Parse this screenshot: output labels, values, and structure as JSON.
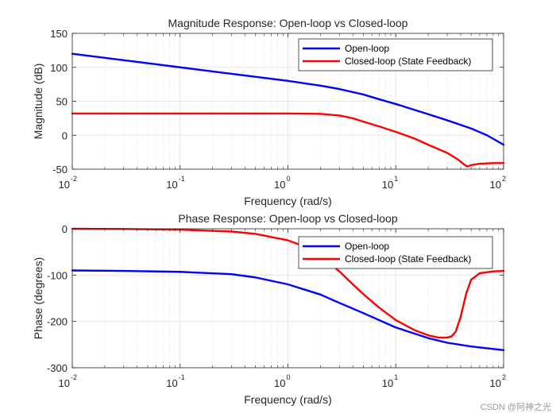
{
  "chart_data": [
    {
      "type": "line",
      "title": "Magnitude Response: Open-loop vs Closed-loop",
      "xlabel": "Frequency (rad/s)",
      "ylabel": "Magnitude (dB)",
      "xscale": "log",
      "xlim": [
        0.01,
        100
      ],
      "ylim": [
        -50,
        150
      ],
      "xticks": [
        {
          "base": "10",
          "exp": "-2",
          "value": 0.01
        },
        {
          "base": "10",
          "exp": "-1",
          "value": 0.1
        },
        {
          "base": "10",
          "exp": "0",
          "value": 1
        },
        {
          "base": "10",
          "exp": "1",
          "value": 10
        },
        {
          "base": "10",
          "exp": "2",
          "value": 100
        }
      ],
      "yticks": [
        {
          "label": "150",
          "value": 150
        },
        {
          "label": "100",
          "value": 100
        },
        {
          "label": "50",
          "value": 50
        },
        {
          "label": "0",
          "value": 0
        },
        {
          "label": "-50",
          "value": -50
        }
      ],
      "grid": true,
      "legend_position": "top-right",
      "series": [
        {
          "name": "Open-loop",
          "color": "#0000ff",
          "x": [
            0.01,
            0.02,
            0.05,
            0.1,
            0.2,
            0.5,
            1,
            2,
            3,
            5,
            7,
            10,
            20,
            30,
            50,
            70,
            100
          ],
          "y": [
            120,
            114,
            106,
            100,
            94,
            86,
            80,
            73,
            68,
            60,
            53,
            46,
            31,
            22,
            10,
            0,
            -14
          ]
        },
        {
          "name": "Closed-loop (State Feedback)",
          "color": "#ff0000",
          "x": [
            0.01,
            0.1,
            1,
            2,
            3,
            4,
            5,
            7,
            10,
            15,
            20,
            30,
            38,
            43,
            46,
            50,
            60,
            80,
            100
          ],
          "y": [
            32,
            32,
            32,
            31.5,
            29,
            25,
            20,
            13,
            5,
            -5,
            -14,
            -26,
            -36,
            -43,
            -46,
            -44,
            -42,
            -41,
            -41
          ]
        }
      ]
    },
    {
      "type": "line",
      "title": "Phase Response: Open-loop vs Closed-loop",
      "xlabel": "Frequency (rad/s)",
      "ylabel": "Phase (degrees)",
      "xscale": "log",
      "xlim": [
        0.01,
        100
      ],
      "ylim": [
        -300,
        0
      ],
      "xticks": [
        {
          "base": "10",
          "exp": "-2",
          "value": 0.01
        },
        {
          "base": "10",
          "exp": "-1",
          "value": 0.1
        },
        {
          "base": "10",
          "exp": "0",
          "value": 1
        },
        {
          "base": "10",
          "exp": "1",
          "value": 10
        },
        {
          "base": "10",
          "exp": "2",
          "value": 100
        }
      ],
      "yticks": [
        {
          "label": "0",
          "value": 0
        },
        {
          "label": "-100",
          "value": -100
        },
        {
          "label": "-200",
          "value": -200
        },
        {
          "label": "-300",
          "value": -300
        }
      ],
      "grid": true,
      "legend_position": "top-right",
      "series": [
        {
          "name": "Open-loop",
          "color": "#0000ff",
          "x": [
            0.01,
            0.03,
            0.1,
            0.3,
            0.5,
            1,
            2,
            3,
            5,
            10,
            20,
            30,
            50,
            100
          ],
          "y": [
            -90,
            -91,
            -93,
            -98,
            -105,
            -120,
            -142,
            -160,
            -182,
            -213,
            -236,
            -246,
            -254,
            -262
          ]
        },
        {
          "name": "Closed-loop (State Feedback)",
          "color": "#ff0000",
          "x": [
            0.01,
            0.03,
            0.1,
            0.3,
            0.5,
            1,
            1.5,
            2,
            3,
            4,
            5,
            7,
            10,
            15,
            20,
            25,
            30,
            33,
            36,
            40,
            45,
            50,
            60,
            80,
            100
          ],
          "y": [
            0,
            -0.5,
            -2,
            -6,
            -11,
            -25,
            -40,
            -58,
            -92,
            -120,
            -141,
            -170,
            -197,
            -219,
            -230,
            -235,
            -235,
            -232,
            -222,
            -190,
            -140,
            -110,
            -96,
            -92,
            -91
          ]
        }
      ]
    }
  ],
  "watermark": "CSDN @阿神之光"
}
